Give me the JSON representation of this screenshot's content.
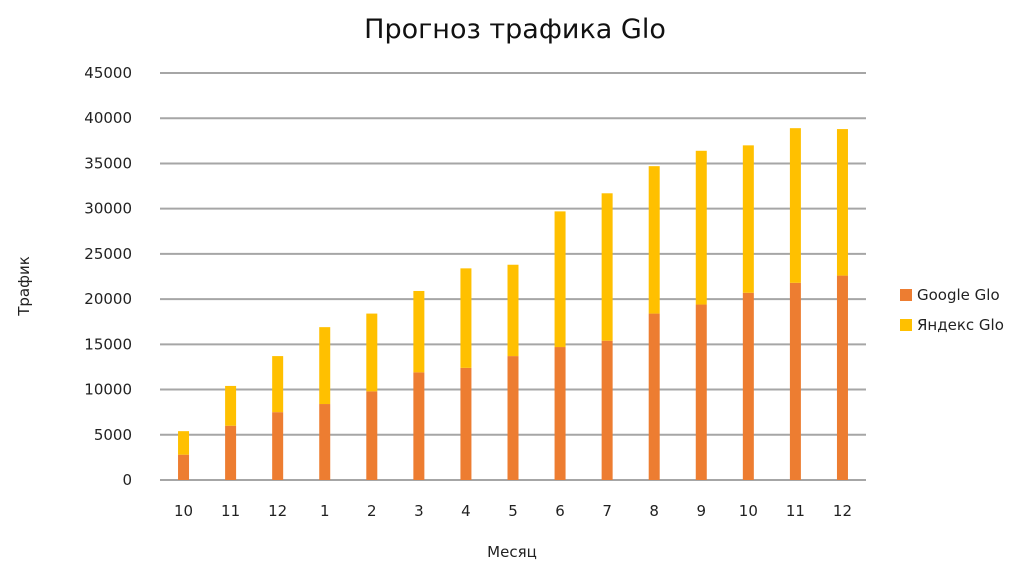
{
  "chart_data": {
    "type": "bar",
    "stacked": true,
    "title": "Прогноз трафика Glo",
    "xlabel": "Месяц",
    "ylabel": "Трафик",
    "categories": [
      "10",
      "11",
      "12",
      "1",
      "2",
      "3",
      "4",
      "5",
      "6",
      "7",
      "8",
      "9",
      "10",
      "11",
      "12"
    ],
    "series": [
      {
        "name": "Google Glo",
        "color": "#ed7d31",
        "values": [
          2800,
          6000,
          7500,
          8400,
          9800,
          11900,
          12400,
          13700,
          14700,
          15400,
          18400,
          19400,
          20700,
          21800,
          22600
        ]
      },
      {
        "name": "Яндекс Glo",
        "color": "#ffc000",
        "values": [
          2600,
          4400,
          6200,
          8500,
          8600,
          9000,
          11000,
          10100,
          15000,
          16300,
          16300,
          17000,
          16300,
          17100,
          16200
        ]
      }
    ],
    "ylim": [
      0,
      45000
    ],
    "yticks": [
      "0",
      "5000",
      "10000",
      "15000",
      "20000",
      "25000",
      "30000",
      "35000",
      "40000",
      "45000"
    ],
    "grid": true,
    "legend_position": "right"
  }
}
